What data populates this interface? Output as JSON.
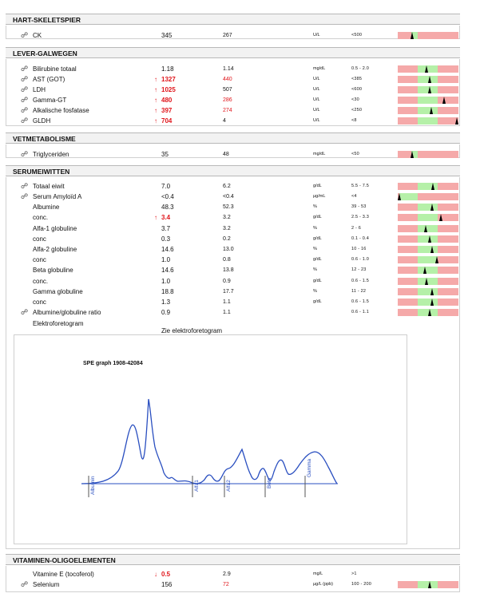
{
  "colors": {
    "abnormal": "#e0151b",
    "range_normal": "#b5f0a8",
    "range_abnormal": "#f5a9a9",
    "curve": "#2a4fc0"
  },
  "sections": [
    {
      "title": "HART-SKELETSPIER"
    },
    {
      "title": "LEVER-GALWEGEN"
    },
    {
      "title": "VETMETABOLISME"
    },
    {
      "title": "SERUMEIWITTEN"
    },
    {
      "title": "VITAMINEN-OLIGOELEMENTEN"
    }
  ],
  "rows": [
    {
      "link": true,
      "name": "CK",
      "value": "345",
      "prev": "267",
      "unit": "U/L",
      "range": "<500",
      "bar": [
        0.22,
        0.33,
        0.24
      ]
    },
    {
      "link": true,
      "name": "Bilirubine totaal",
      "value": "1.18",
      "prev": "1.14",
      "unit": "mg/dL",
      "range": "0.5  -  2.0",
      "bar": [
        0.33,
        0.66,
        0.47
      ]
    },
    {
      "link": true,
      "name": "AST (GOT)",
      "arrow": "↑",
      "value": "1327",
      "abn": true,
      "prev": "440",
      "prevAbn": true,
      "unit": "U/L",
      "range": "<385",
      "bar": [
        0.33,
        0.66,
        0.52
      ]
    },
    {
      "link": true,
      "name": "LDH",
      "arrow": "↑",
      "value": "1025",
      "abn": true,
      "prev": "507",
      "unit": "U/L",
      "range": "<600",
      "bar": [
        0.33,
        0.66,
        0.52
      ]
    },
    {
      "link": true,
      "name": "Gamma-GT",
      "arrow": "↑",
      "value": "480",
      "abn": true,
      "prev": "286",
      "prevAbn": true,
      "unit": "U/L",
      "range": "<30",
      "bar": [
        0.33,
        0.66,
        0.76
      ]
    },
    {
      "link": true,
      "name": "Alkalische fosfatase",
      "arrow": "↑",
      "value": "397",
      "abn": true,
      "prev": "274",
      "prevAbn": true,
      "unit": "U/L",
      "range": "<250",
      "bar": [
        0.33,
        0.66,
        0.55
      ]
    },
    {
      "link": true,
      "name": "GLDH",
      "arrow": "↑",
      "value": "704",
      "abn": true,
      "prev": "4",
      "unit": "U/L",
      "range": "<8",
      "bar": [
        0.33,
        0.66,
        0.97
      ]
    },
    {
      "link": true,
      "name": "Triglyceriden",
      "value": "35",
      "prev": "48",
      "unit": "mg/dL",
      "range": "<50",
      "bar": [
        0.22,
        0.33,
        0.24
      ]
    },
    {
      "link": true,
      "name": "Totaal eiwit",
      "value": "7.0",
      "prev": "6.2",
      "unit": "g/dL",
      "range": "5.5  -  7.5",
      "bar": [
        0.33,
        0.66,
        0.58
      ]
    },
    {
      "link": true,
      "name": "Serum Amyloïd A",
      "value": "<0.4",
      "prev": "<0.4",
      "unit": "µg/mL",
      "range": "<4",
      "bar": [
        0.02,
        0.33,
        0.03
      ]
    },
    {
      "link": false,
      "name": "Albumine",
      "value": "48.3",
      "prev": "52.3",
      "unit": "%",
      "range": "39  -  53",
      "bar": [
        0.33,
        0.66,
        0.56
      ]
    },
    {
      "link": false,
      "name": "conc.",
      "arrow": "↑",
      "value": "3.4",
      "abn": true,
      "prev": "3.2",
      "unit": "g/dL",
      "range": "2.5  -  3.3",
      "bar": [
        0.33,
        0.66,
        0.71
      ]
    },
    {
      "link": false,
      "name": "Alfa-1 globuline",
      "value": "3.7",
      "prev": "3.2",
      "unit": "%",
      "range": "2  -  6",
      "bar": [
        0.33,
        0.66,
        0.46
      ]
    },
    {
      "link": false,
      "name": "conc",
      "value": "0.3",
      "prev": "0.2",
      "unit": "g/dL",
      "range": "0.1  -  0.4",
      "bar": [
        0.33,
        0.66,
        0.52
      ]
    },
    {
      "link": false,
      "name": "Alfa-2 globuline",
      "value": "14.6",
      "prev": "13.0",
      "unit": "%",
      "range": "10  -  16",
      "bar": [
        0.33,
        0.66,
        0.56
      ]
    },
    {
      "link": false,
      "name": "conc",
      "value": "1.0",
      "prev": "0.8",
      "unit": "g/dL",
      "range": "0.6  -  1.0",
      "bar": [
        0.33,
        0.66,
        0.64
      ]
    },
    {
      "link": false,
      "name": "Beta globuline",
      "value": "14.6",
      "prev": "13.8",
      "unit": "%",
      "range": "12  -  23",
      "bar": [
        0.33,
        0.66,
        0.45
      ]
    },
    {
      "link": false,
      "name": "conc.",
      "value": "1.0",
      "prev": "0.9",
      "unit": "g/dL",
      "range": "0.6  -  1.5",
      "bar": [
        0.33,
        0.66,
        0.47
      ]
    },
    {
      "link": false,
      "name": "Gamma globuline",
      "value": "18.8",
      "prev": "17.7",
      "unit": "%",
      "range": "11  -  22",
      "bar": [
        0.33,
        0.66,
        0.57
      ]
    },
    {
      "link": false,
      "name": "conc",
      "value": "1.3",
      "prev": "1.1",
      "unit": "g/dL",
      "range": "0.6  -  1.5",
      "bar": [
        0.33,
        0.66,
        0.57
      ]
    },
    {
      "link": true,
      "name": "Albumine/globuline ratio",
      "value": "0.9",
      "prev": "1.1",
      "unit": "",
      "range": "0.6  -  1.1",
      "bar": [
        0.33,
        0.66,
        0.53
      ]
    },
    {
      "link": false,
      "name": "Elektroforetogram",
      "value": "",
      "prev": "",
      "unit": "",
      "range": ""
    },
    {
      "link": false,
      "name": "Vitamine E (tocoferol)",
      "arrow": "↓",
      "value": "0.5",
      "abn": true,
      "prev": "2.9",
      "unit": "mg/L",
      "range": ">1"
    },
    {
      "link": true,
      "name": "Selenium",
      "value": "156",
      "prev": "72",
      "prevAbn": true,
      "unit": "µg/L (ppb)",
      "range": "100  -  200",
      "bar": [
        0.33,
        0.66,
        0.52
      ]
    }
  ],
  "electro": {
    "caption": "Zie elektroforetogram",
    "title": "SPE graph 1908-42084",
    "fractions": [
      "Albumin",
      "Alfa1",
      "Alfa2",
      "Beta",
      "Gamma"
    ]
  },
  "link_symbol": "☍"
}
